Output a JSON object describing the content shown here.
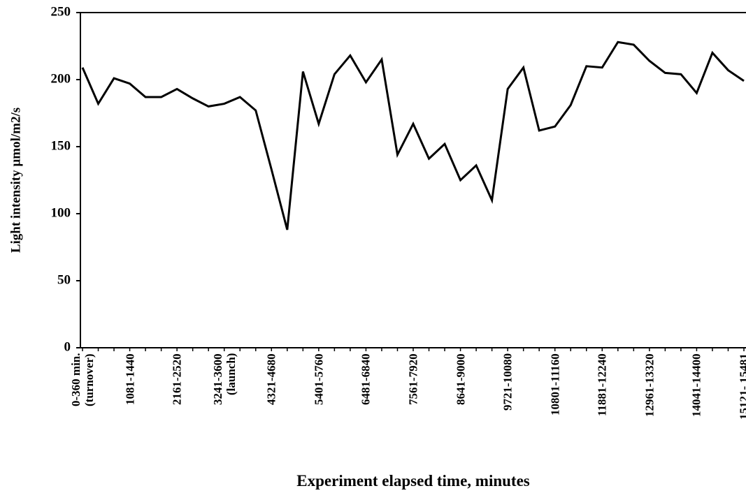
{
  "chart_data": {
    "type": "line",
    "x_label": "Experiment elapsed time, minutes",
    "y_label": "Light intensity µmol/m2/s",
    "categories": [
      "0-360 min. (turnover)",
      null,
      null,
      "1081-1440",
      null,
      null,
      "2161-2520",
      null,
      null,
      "3241-3600 (launch)",
      null,
      null,
      "4321-4680",
      null,
      null,
      "5401-5760",
      null,
      null,
      "6481-6840",
      null,
      null,
      "7561-7920",
      null,
      null,
      "8641-9000",
      null,
      null,
      "9721-10080",
      null,
      null,
      "10801-11160",
      null,
      null,
      "11881-12240",
      null,
      null,
      "12961-13320",
      null,
      null,
      "14041-14400",
      null,
      null,
      "15121- 15481"
    ],
    "series": [
      {
        "name": "Light intensity",
        "color": "#000000",
        "values": [
          209,
          182,
          201,
          197,
          187,
          187,
          193,
          186,
          180,
          182,
          187,
          177,
          133,
          88,
          206,
          167,
          204,
          218,
          198,
          215,
          144,
          167,
          141,
          152,
          125,
          136,
          110,
          193,
          209,
          162,
          165,
          181,
          210,
          209,
          228,
          226,
          214,
          205,
          204,
          190,
          220,
          207,
          199
        ]
      }
    ],
    "ylim": [
      0,
      250
    ],
    "yticks": [
      0,
      50,
      100,
      150,
      200,
      250
    ]
  }
}
